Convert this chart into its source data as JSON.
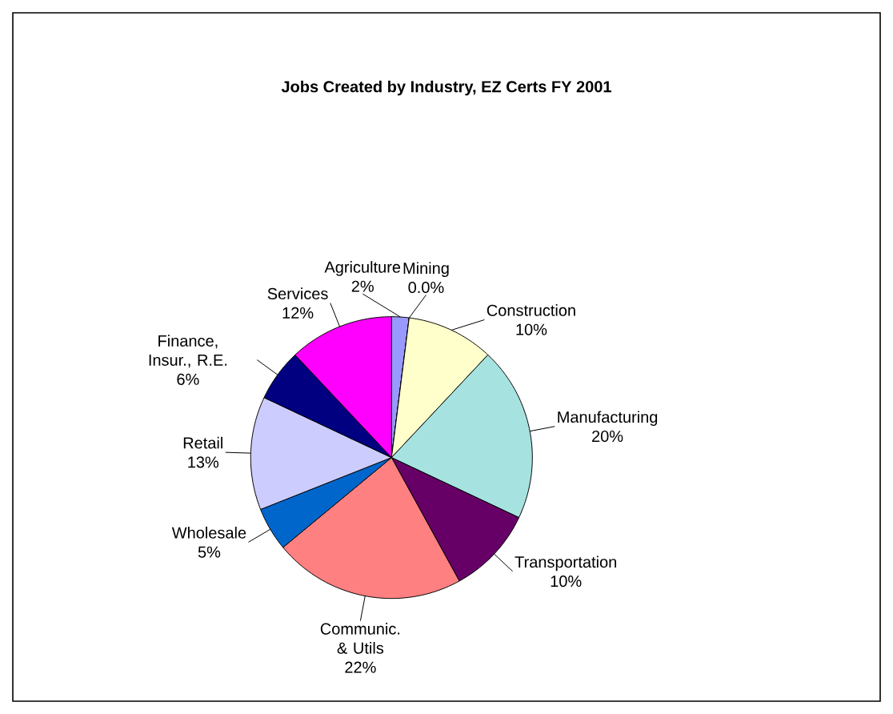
{
  "chart_data": {
    "type": "pie",
    "title": "Jobs Created by Industry, EZ Certs FY 2001",
    "categories": [
      "Agriculture",
      "Mining",
      "Construction",
      "Manufacturing",
      "Transportation",
      "Communic. & Utils",
      "Wholesale",
      "Retail",
      "Finance, Insur., R.E.",
      "Services"
    ],
    "values": [
      2,
      0,
      10,
      20,
      10,
      22,
      5,
      13,
      6,
      12
    ],
    "value_labels": [
      "2%",
      "0.0%",
      "10%",
      "20%",
      "10%",
      "22%",
      "5%",
      "13%",
      "6%",
      "12%"
    ],
    "colors": [
      "#9999ff",
      "#993366",
      "#ffffcc",
      "#a6e3e0",
      "#660066",
      "#ff8080",
      "#0066cc",
      "#ccccff",
      "#000080",
      "#ff00ff"
    ]
  }
}
